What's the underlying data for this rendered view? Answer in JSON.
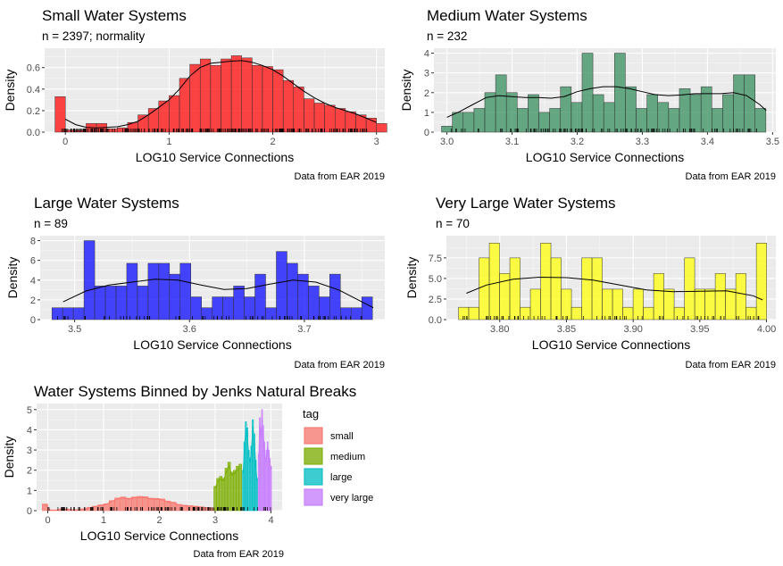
{
  "figure": {
    "caption_all": "Data from EAR 2019"
  },
  "chart_data": [
    {
      "id": "small",
      "type": "bar",
      "title": "Small Water Systems",
      "subtitle": "n = 2397; normality",
      "xlabel": "LOG10 Service Connections",
      "ylabel": "Density",
      "caption": "Data from EAR 2019",
      "xlim": [
        -0.2,
        3.08
      ],
      "ylim": [
        0,
        0.78
      ],
      "xticks": [
        0,
        1,
        2,
        3
      ],
      "xtick_labels": [
        "0",
        "1",
        "2",
        "3"
      ],
      "yticks": [
        0.0,
        0.2,
        0.4,
        0.6
      ],
      "ytick_labels": [
        "0.0",
        "0.2",
        "0.4",
        "0.6"
      ],
      "fill": "#ff0000",
      "grid": true,
      "bin_width": 0.1,
      "bins": [
        [
          -0.05,
          0.33
        ],
        [
          0.05,
          0.02
        ],
        [
          0.15,
          0.02
        ],
        [
          0.25,
          0.08
        ],
        [
          0.35,
          0.08
        ],
        [
          0.45,
          0.03
        ],
        [
          0.55,
          0.04
        ],
        [
          0.65,
          0.09
        ],
        [
          0.75,
          0.16
        ],
        [
          0.85,
          0.22
        ],
        [
          0.95,
          0.29
        ],
        [
          1.05,
          0.34
        ],
        [
          1.15,
          0.5
        ],
        [
          1.25,
          0.63
        ],
        [
          1.35,
          0.68
        ],
        [
          1.45,
          0.62
        ],
        [
          1.55,
          0.68
        ],
        [
          1.65,
          0.71
        ],
        [
          1.75,
          0.69
        ],
        [
          1.85,
          0.62
        ],
        [
          1.95,
          0.61
        ],
        [
          2.05,
          0.58
        ],
        [
          2.15,
          0.48
        ],
        [
          2.25,
          0.42
        ],
        [
          2.35,
          0.31
        ],
        [
          2.45,
          0.27
        ],
        [
          2.55,
          0.25
        ],
        [
          2.65,
          0.22
        ],
        [
          2.75,
          0.19
        ],
        [
          2.85,
          0.16
        ],
        [
          2.95,
          0.13
        ],
        [
          3.05,
          0.08
        ]
      ],
      "density_line": [
        [
          0,
          0.12
        ],
        [
          0.1,
          0.07
        ],
        [
          0.2,
          0.045
        ],
        [
          0.3,
          0.04
        ],
        [
          0.4,
          0.045
        ],
        [
          0.5,
          0.05
        ],
        [
          0.6,
          0.07
        ],
        [
          0.7,
          0.1
        ],
        [
          0.8,
          0.16
        ],
        [
          0.9,
          0.23
        ],
        [
          1.0,
          0.3
        ],
        [
          1.1,
          0.4
        ],
        [
          1.2,
          0.52
        ],
        [
          1.3,
          0.6
        ],
        [
          1.4,
          0.64
        ],
        [
          1.5,
          0.65
        ],
        [
          1.6,
          0.66
        ],
        [
          1.7,
          0.665
        ],
        [
          1.8,
          0.65
        ],
        [
          1.9,
          0.62
        ],
        [
          2.0,
          0.58
        ],
        [
          2.1,
          0.52
        ],
        [
          2.2,
          0.45
        ],
        [
          2.3,
          0.38
        ],
        [
          2.4,
          0.32
        ],
        [
          2.5,
          0.27
        ],
        [
          2.6,
          0.23
        ],
        [
          2.7,
          0.2
        ],
        [
          2.8,
          0.17
        ],
        [
          2.9,
          0.13
        ],
        [
          3.0,
          0.09
        ]
      ]
    },
    {
      "id": "medium",
      "type": "bar",
      "title": "Medium Water Systems",
      "subtitle": "n = 232",
      "xlabel": "LOG10 Service Connections",
      "ylabel": "Density",
      "caption": "Data from EAR 2019",
      "xlim": [
        2.98,
        3.505
      ],
      "ylim": [
        0,
        4.25
      ],
      "xticks": [
        3.0,
        3.1,
        3.2,
        3.3,
        3.4,
        3.5
      ],
      "xtick_labels": [
        "3.0",
        "3.1",
        "3.2",
        "3.3",
        "3.4",
        "3.5"
      ],
      "yticks": [
        0,
        1,
        2,
        3,
        4
      ],
      "ytick_labels": [
        "0",
        "1",
        "2",
        "3",
        "4"
      ],
      "fill": "#2e8b57",
      "grid": true,
      "bin_width": 0.0166,
      "bins": [
        [
          3.0,
          0.3
        ],
        [
          3.0166,
          1.0
        ],
        [
          3.0332,
          1.0
        ],
        [
          3.0498,
          1.2
        ],
        [
          3.0664,
          2.0
        ],
        [
          3.083,
          2.9
        ],
        [
          3.0996,
          2.0
        ],
        [
          3.1162,
          1.2
        ],
        [
          3.1328,
          1.9
        ],
        [
          3.1494,
          1.0
        ],
        [
          3.166,
          1.2
        ],
        [
          3.1826,
          2.3
        ],
        [
          3.1992,
          1.5
        ],
        [
          3.2158,
          4.0
        ],
        [
          3.2324,
          1.9
        ],
        [
          3.249,
          1.5
        ],
        [
          3.2656,
          4.0
        ],
        [
          3.2822,
          2.3
        ],
        [
          3.2988,
          1.2
        ],
        [
          3.3154,
          1.9
        ],
        [
          3.332,
          1.5
        ],
        [
          3.3486,
          1.2
        ],
        [
          3.3652,
          2.2
        ],
        [
          3.3818,
          1.9
        ],
        [
          3.3984,
          2.3
        ],
        [
          3.415,
          1.2
        ],
        [
          3.4316,
          1.9
        ],
        [
          3.4482,
          2.9
        ],
        [
          3.4648,
          2.9
        ],
        [
          3.4814,
          1.2
        ]
      ],
      "density_line": [
        [
          3.0,
          0.75
        ],
        [
          3.02,
          1.05
        ],
        [
          3.04,
          1.4
        ],
        [
          3.06,
          1.75
        ],
        [
          3.08,
          1.85
        ],
        [
          3.1,
          1.8
        ],
        [
          3.12,
          1.75
        ],
        [
          3.14,
          1.75
        ],
        [
          3.16,
          1.72
        ],
        [
          3.18,
          1.8
        ],
        [
          3.2,
          2.05
        ],
        [
          3.22,
          2.2
        ],
        [
          3.24,
          2.3
        ],
        [
          3.26,
          2.3
        ],
        [
          3.28,
          2.2
        ],
        [
          3.3,
          2.05
        ],
        [
          3.32,
          1.9
        ],
        [
          3.34,
          1.85
        ],
        [
          3.36,
          1.88
        ],
        [
          3.38,
          1.95
        ],
        [
          3.4,
          1.95
        ],
        [
          3.42,
          1.95
        ],
        [
          3.44,
          2.0
        ],
        [
          3.46,
          1.85
        ],
        [
          3.48,
          1.4
        ],
        [
          3.49,
          1.1
        ]
      ]
    },
    {
      "id": "large",
      "type": "bar",
      "title": "Large Water Systems",
      "subtitle": "n = 89",
      "xlabel": "LOG10 Service Connections",
      "ylabel": "Density",
      "caption": "Data from EAR 2019",
      "xlim": [
        3.47,
        3.77
      ],
      "ylim": [
        0,
        8.5
      ],
      "xticks": [
        3.5,
        3.6,
        3.7
      ],
      "xtick_labels": [
        "3.5",
        "3.6",
        "3.7"
      ],
      "yticks": [
        0,
        2,
        4,
        6,
        8
      ],
      "ytick_labels": [
        "0",
        "2",
        "4",
        "6",
        "8"
      ],
      "fill": "#0000ff",
      "grid": true,
      "bin_width": 0.0093,
      "bins": [
        [
          3.4849,
          1.2
        ],
        [
          3.4942,
          1.2
        ],
        [
          3.5035,
          1.2
        ],
        [
          3.5128,
          8.0
        ],
        [
          3.5221,
          3.4
        ],
        [
          3.5314,
          3.4
        ],
        [
          3.5407,
          3.4
        ],
        [
          3.55,
          5.7
        ],
        [
          3.5593,
          3.4
        ],
        [
          3.5686,
          5.7
        ],
        [
          3.5779,
          5.7
        ],
        [
          3.5872,
          4.6
        ],
        [
          3.5965,
          5.7
        ],
        [
          3.6058,
          2.3
        ],
        [
          3.6151,
          1.2
        ],
        [
          3.6244,
          2.3
        ],
        [
          3.6337,
          2.3
        ],
        [
          3.643,
          3.4
        ],
        [
          3.6523,
          2.3
        ],
        [
          3.6616,
          4.6
        ],
        [
          3.6709,
          1.2
        ],
        [
          3.6802,
          6.9
        ],
        [
          3.6895,
          5.7
        ],
        [
          3.6988,
          4.6
        ],
        [
          3.7081,
          3.4
        ],
        [
          3.7174,
          2.3
        ],
        [
          3.7267,
          4.6
        ],
        [
          3.736,
          1.2
        ],
        [
          3.7453,
          1.2
        ],
        [
          3.7546,
          2.3
        ]
      ],
      "density_line": [
        [
          3.49,
          1.8
        ],
        [
          3.51,
          2.9
        ],
        [
          3.53,
          3.5
        ],
        [
          3.55,
          3.8
        ],
        [
          3.57,
          4.1
        ],
        [
          3.59,
          4.0
        ],
        [
          3.61,
          3.5
        ],
        [
          3.63,
          3.05
        ],
        [
          3.65,
          3.15
        ],
        [
          3.67,
          3.6
        ],
        [
          3.69,
          4.0
        ],
        [
          3.71,
          3.8
        ],
        [
          3.73,
          3.0
        ],
        [
          3.75,
          1.8
        ],
        [
          3.76,
          1.2
        ]
      ]
    },
    {
      "id": "very-large",
      "type": "bar",
      "title": "Very Large Water Systems",
      "subtitle": "n = 70",
      "xlabel": "LOG10 Service Connections",
      "ylabel": "Density",
      "caption": "Data from EAR 2019",
      "xlim": [
        3.76,
        4.007
      ],
      "ylim": [
        0,
        10.2
      ],
      "xticks": [
        3.8,
        3.85,
        3.9,
        3.95,
        4.0
      ],
      "xtick_labels": [
        "3.80",
        "3.85",
        "3.90",
        "3.95",
        "4.00"
      ],
      "yticks": [
        0,
        2.5,
        5,
        7.5
      ],
      "ytick_labels": [
        "0.0",
        "2.5",
        "5.0",
        "7.5"
      ],
      "fill": "#ffff00",
      "grid": true,
      "bin_width": 0.0077,
      "bins": [
        [
          3.7729,
          1.5
        ],
        [
          3.7806,
          1.5
        ],
        [
          3.7883,
          7.5
        ],
        [
          3.796,
          9.3
        ],
        [
          3.8037,
          5.6
        ],
        [
          3.8114,
          7.5
        ],
        [
          3.8191,
          1.5
        ],
        [
          3.8268,
          3.7
        ],
        [
          3.8345,
          9.3
        ],
        [
          3.8422,
          7.5
        ],
        [
          3.8499,
          3.7
        ],
        [
          3.8576,
          1.5
        ],
        [
          3.8653,
          7.5
        ],
        [
          3.873,
          7.5
        ],
        [
          3.8807,
          3.7
        ],
        [
          3.8884,
          3.7
        ],
        [
          3.8961,
          1.5
        ],
        [
          3.9038,
          3.7
        ],
        [
          3.9115,
          1.5
        ],
        [
          3.9192,
          5.6
        ],
        [
          3.9269,
          3.7
        ],
        [
          3.9346,
          1.5
        ],
        [
          3.9423,
          7.5
        ],
        [
          3.95,
          3.7
        ],
        [
          3.9577,
          3.7
        ],
        [
          3.9654,
          5.6
        ],
        [
          3.9731,
          3.7
        ],
        [
          3.9808,
          5.6
        ],
        [
          3.9885,
          1.5
        ],
        [
          3.9962,
          9.3
        ]
      ],
      "density_line": [
        [
          3.775,
          3.2
        ],
        [
          3.79,
          4.2
        ],
        [
          3.81,
          4.9
        ],
        [
          3.83,
          5.15
        ],
        [
          3.85,
          5.1
        ],
        [
          3.87,
          4.8
        ],
        [
          3.89,
          4.2
        ],
        [
          3.91,
          3.6
        ],
        [
          3.93,
          3.4
        ],
        [
          3.95,
          3.45
        ],
        [
          3.97,
          3.5
        ],
        [
          3.99,
          2.9
        ],
        [
          3.997,
          2.4
        ]
      ]
    },
    {
      "id": "combined",
      "type": "bar",
      "title": "Water Systems Binned by Jenks Natural Breaks",
      "xlabel": "LOG10 Service Connections",
      "ylabel": "Density",
      "caption": "Data from EAR 2019",
      "xlim": [
        -0.2,
        4.2
      ],
      "ylim": [
        0,
        5.3
      ],
      "xticks": [
        0,
        1,
        2,
        3,
        4
      ],
      "xtick_labels": [
        "0",
        "1",
        "2",
        "3",
        "4"
      ],
      "yticks": [
        0,
        1,
        2,
        3,
        4,
        5
      ],
      "ytick_labels": [
        "0",
        "1",
        "2",
        "3",
        "4",
        "5"
      ],
      "grid": true,
      "legend": {
        "title": "tag",
        "position": "right",
        "entries": [
          "small",
          "medium",
          "large",
          "very large"
        ]
      },
      "series": [
        {
          "name": "small",
          "color": "#f8766d",
          "bin_width": 0.1,
          "bins": [
            [
              -0.05,
              0.33
            ],
            [
              0.05,
              0.03
            ],
            [
              0.15,
              0.03
            ],
            [
              0.25,
              0.08
            ],
            [
              0.35,
              0.08
            ],
            [
              0.45,
              0.04
            ],
            [
              0.55,
              0.05
            ],
            [
              0.65,
              0.09
            ],
            [
              0.75,
              0.16
            ],
            [
              0.85,
              0.22
            ],
            [
              0.95,
              0.29
            ],
            [
              1.05,
              0.34
            ],
            [
              1.15,
              0.5
            ],
            [
              1.25,
              0.63
            ],
            [
              1.35,
              0.68
            ],
            [
              1.45,
              0.62
            ],
            [
              1.55,
              0.68
            ],
            [
              1.65,
              0.71
            ],
            [
              1.75,
              0.69
            ],
            [
              1.85,
              0.62
            ],
            [
              1.95,
              0.61
            ],
            [
              2.05,
              0.58
            ],
            [
              2.15,
              0.48
            ],
            [
              2.25,
              0.42
            ],
            [
              2.35,
              0.31
            ],
            [
              2.45,
              0.27
            ],
            [
              2.55,
              0.25
            ],
            [
              2.65,
              0.22
            ],
            [
              2.75,
              0.19
            ],
            [
              2.85,
              0.16
            ],
            [
              2.95,
              0.13
            ]
          ]
        },
        {
          "name": "medium",
          "color": "#7cae00",
          "bin_width": 0.05,
          "bins": [
            [
              3.0,
              1.2
            ],
            [
              3.05,
              1.6
            ],
            [
              3.1,
              1.7
            ],
            [
              3.15,
              1.6
            ],
            [
              3.2,
              2.1
            ],
            [
              3.25,
              2.4
            ],
            [
              3.3,
              1.9
            ],
            [
              3.35,
              2.0
            ],
            [
              3.4,
              2.2
            ],
            [
              3.45,
              2.3
            ]
          ]
        },
        {
          "name": "large",
          "color": "#00bfc4",
          "bin_width": 0.025,
          "bins": [
            [
              3.5,
              2.0
            ],
            [
              3.525,
              3.4
            ],
            [
              3.55,
              4.4
            ],
            [
              3.575,
              4.1
            ],
            [
              3.6,
              3.0
            ],
            [
              3.625,
              2.6
            ],
            [
              3.65,
              3.2
            ],
            [
              3.675,
              4.5
            ],
            [
              3.7,
              3.8
            ],
            [
              3.725,
              2.5
            ],
            [
              3.75,
              1.6
            ]
          ]
        },
        {
          "name": "very large",
          "color": "#c77cff",
          "bin_width": 0.02,
          "bins": [
            [
              3.78,
              2.8
            ],
            [
              3.8,
              4.6
            ],
            [
              3.82,
              4.0
            ],
            [
              3.84,
              5.0
            ],
            [
              3.86,
              4.2
            ],
            [
              3.88,
              3.4
            ],
            [
              3.9,
              2.6
            ],
            [
              3.92,
              3.0
            ],
            [
              3.94,
              3.4
            ],
            [
              3.96,
              3.0
            ],
            [
              3.98,
              2.6
            ],
            [
              4.0,
              2.2
            ]
          ]
        }
      ]
    }
  ]
}
